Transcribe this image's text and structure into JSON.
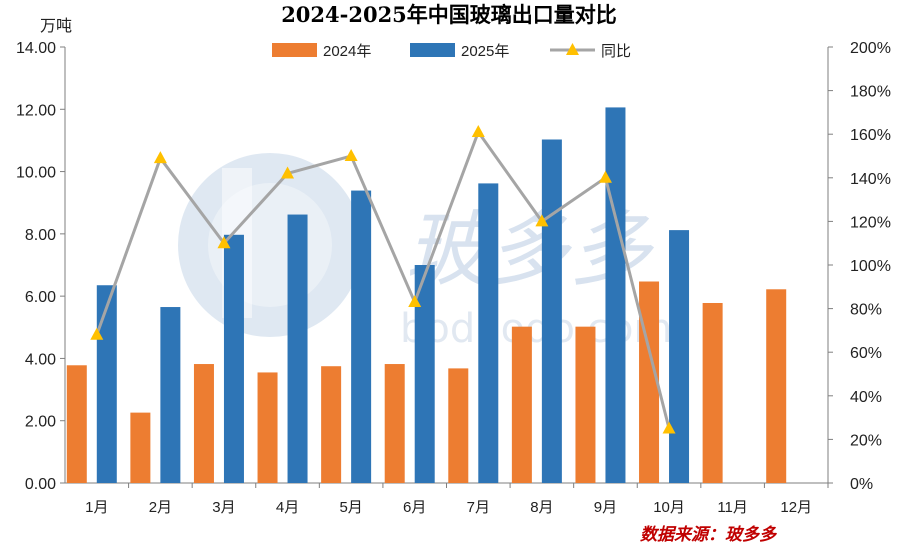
{
  "chart_data": {
    "type": "bar+line",
    "title": "2024-2025年中国玻璃出口量对比",
    "ylabel": "万吨",
    "categories": [
      "1月",
      "2月",
      "3月",
      "4月",
      "5月",
      "6月",
      "7月",
      "8月",
      "9月",
      "10月",
      "11月",
      "12月"
    ],
    "series": [
      {
        "name": "2024年",
        "type": "bar",
        "axis": "left",
        "color": "#ED7D31",
        "values": [
          3.78,
          2.26,
          3.82,
          3.55,
          3.75,
          3.82,
          3.68,
          5.02,
          5.02,
          6.47,
          5.78,
          6.22
        ]
      },
      {
        "name": "2025年",
        "type": "bar",
        "axis": "left",
        "color": "#2E75B6",
        "values": [
          6.35,
          5.65,
          7.97,
          8.62,
          9.39,
          7.0,
          9.62,
          11.03,
          12.06,
          8.12,
          null,
          null
        ]
      },
      {
        "name": "同比",
        "type": "line",
        "axis": "right",
        "color": "#A5A5A5",
        "marker_color": "#FFC000",
        "values": [
          68,
          149,
          110,
          142,
          150,
          83,
          161,
          120,
          140,
          25,
          null,
          null
        ]
      }
    ],
    "ylim_left": [
      0,
      14
    ],
    "yticks_left": [
      "0.00",
      "2.00",
      "4.00",
      "6.00",
      "8.00",
      "10.00",
      "12.00",
      "14.00"
    ],
    "ylim_right": [
      0,
      200
    ],
    "yticks_right": [
      "0%",
      "20%",
      "40%",
      "60%",
      "80%",
      "100%",
      "120%",
      "140%",
      "160%",
      "180%",
      "200%"
    ],
    "legend_position": "top-center"
  },
  "watermark": {
    "text_cn": "玻多多",
    "text_en": "boduodo.com"
  },
  "source": "数据来源：玻多多",
  "colors": {
    "source": "#C00000",
    "axis": "#7F7F7F",
    "watermark": "#C5D6E8"
  }
}
